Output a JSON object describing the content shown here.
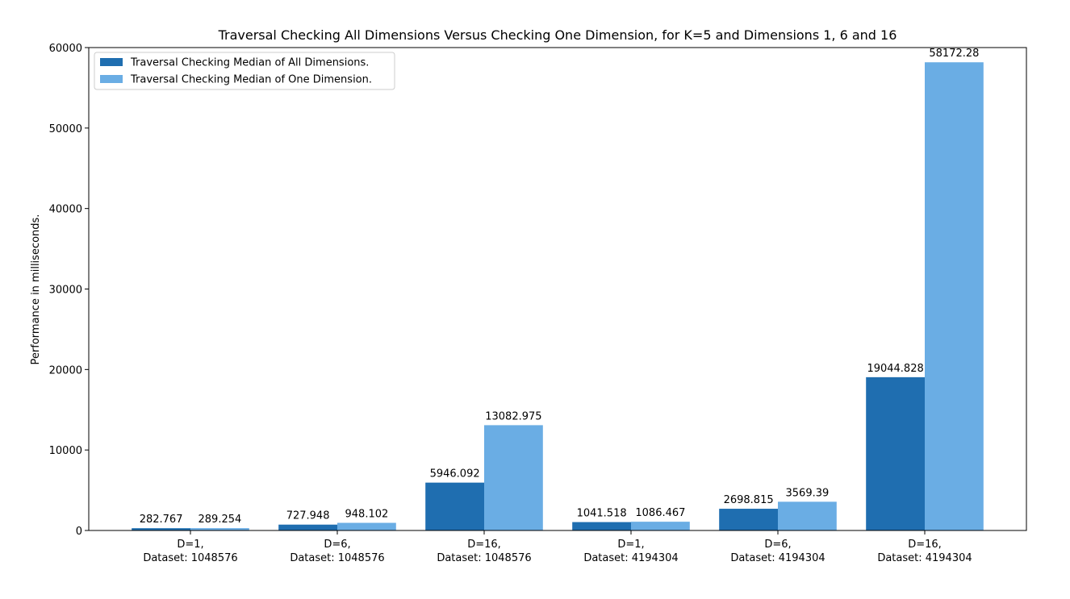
{
  "chart_data": {
    "type": "bar",
    "title": "Traversal Checking All Dimensions Versus Checking One Dimension, for K=5 and Dimensions 1, 6 and 16",
    "xlabel": "",
    "ylabel": "Performance in milliseconds.",
    "ylim": [
      0,
      60000
    ],
    "yticks": [
      0,
      10000,
      20000,
      30000,
      40000,
      50000,
      60000
    ],
    "grid": false,
    "legend_position": "top-left",
    "categories": [
      [
        "D=1,",
        "Dataset: 1048576"
      ],
      [
        "D=6,",
        "Dataset: 1048576"
      ],
      [
        "D=16,",
        "Dataset: 1048576"
      ],
      [
        "D=1,",
        "Dataset: 4194304"
      ],
      [
        "D=6,",
        "Dataset: 4194304"
      ],
      [
        "D=16,",
        "Dataset: 4194304"
      ]
    ],
    "series": [
      {
        "name": "Traversal Checking Median of All Dimensions.",
        "color": "#1f6eb0",
        "values": [
          282.767,
          727.948,
          5946.092,
          1041.518,
          2698.815,
          19044.828
        ],
        "labels": [
          "282.767",
          "727.948",
          "5946.092",
          "1041.518",
          "2698.815",
          "19044.828"
        ]
      },
      {
        "name": "Traversal Checking Median of One Dimension.",
        "color": "#6aade4",
        "values": [
          289.254,
          948.102,
          13082.975,
          1086.467,
          3569.39,
          58172.28
        ],
        "labels": [
          "289.254",
          "948.102",
          "13082.975",
          "1086.467",
          "3569.39",
          "58172.28"
        ]
      }
    ]
  }
}
